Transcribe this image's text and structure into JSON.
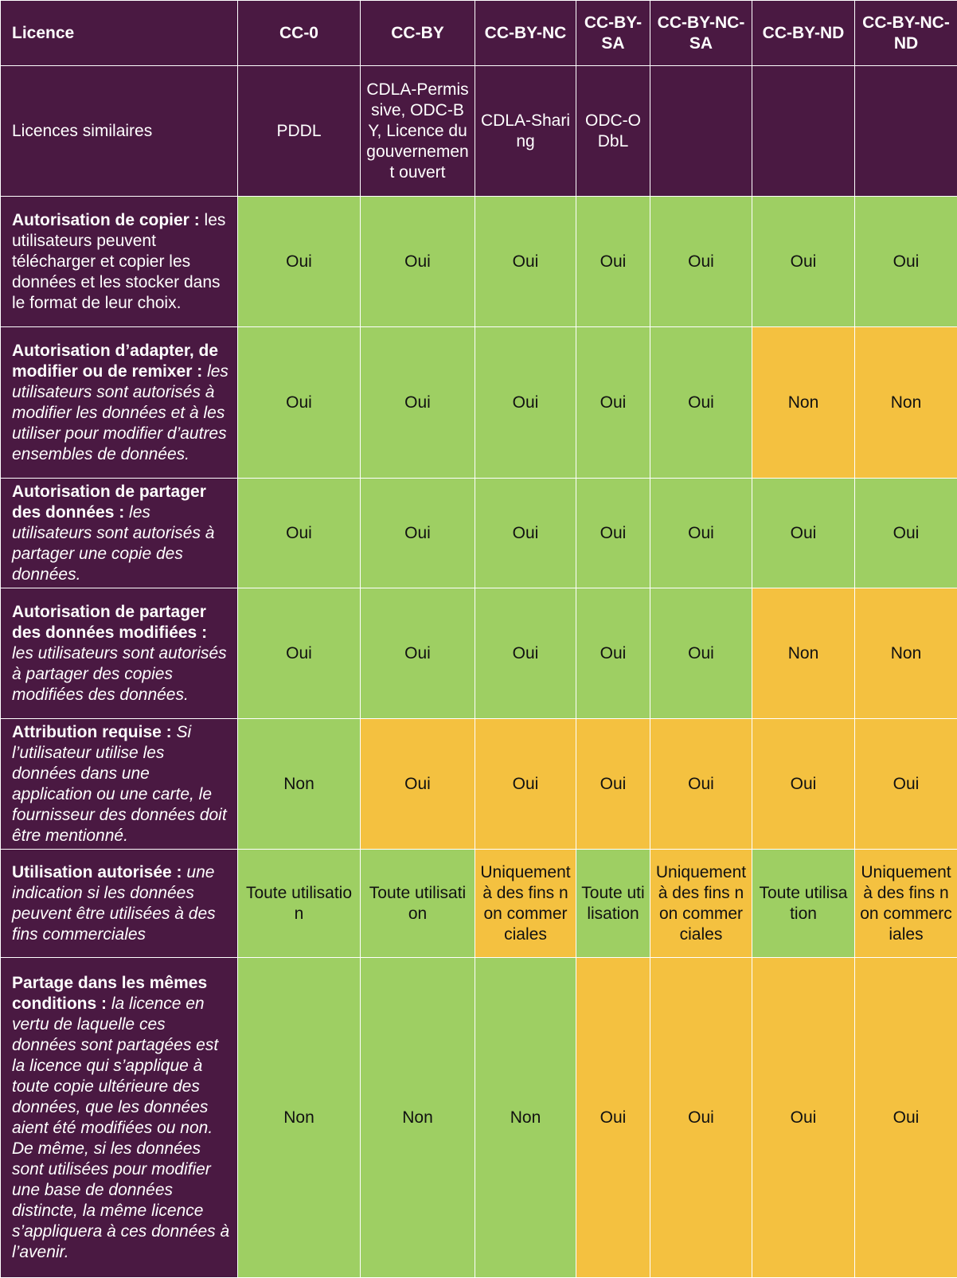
{
  "colors": {
    "header_bg": "#4a1942",
    "yes_bg": "#9ecf63",
    "restricted_bg": "#f4c140",
    "header_text": "#ffffff"
  },
  "header": {
    "label": "Licence",
    "columns": [
      "CC-0",
      "CC-BY",
      "CC-BY-NC",
      "CC-BY-SA",
      "CC-BY-NC-SA",
      "CC-BY-ND",
      "CC-BY-NC-ND"
    ]
  },
  "similar": {
    "label": "Licences similaires",
    "values": [
      "PDDL",
      "CDLA-Permissive, ODC-BY, Licence du gouvernement ouvert",
      "CDLA-Sharing",
      "ODC-ODbL",
      "",
      "",
      ""
    ]
  },
  "rows": [
    {
      "bold": "Autorisation de copier :",
      "desc": "les utilisateurs peuvent télécharger et copier les données et les stocker dans le format de leur choix.",
      "desc_italic": false,
      "values": [
        "Oui",
        "Oui",
        "Oui",
        "Oui",
        "Oui",
        "Oui",
        "Oui"
      ],
      "colors": [
        "green",
        "green",
        "green",
        "green",
        "green",
        "green",
        "green"
      ]
    },
    {
      "bold": "Autorisation d’adapter, de modifier ou de remixer :",
      "desc": "les utilisateurs sont autorisés à modifier les données et à les utiliser pour modifier d’autres ensembles de données.",
      "desc_italic": true,
      "values": [
        "Oui",
        "Oui",
        "Oui",
        "Oui",
        "Oui",
        "Non",
        "Non"
      ],
      "colors": [
        "green",
        "green",
        "green",
        "green",
        "green",
        "yellow",
        "yellow"
      ]
    },
    {
      "bold": "Autorisation de partager des données :",
      "desc": "les utilisateurs sont autorisés à partager une copie des données.",
      "desc_italic": true,
      "values": [
        "Oui",
        "Oui",
        "Oui",
        "Oui",
        "Oui",
        "Oui",
        "Oui"
      ],
      "colors": [
        "green",
        "green",
        "green",
        "green",
        "green",
        "green",
        "green"
      ]
    },
    {
      "bold": "Autorisation de partager des données modifiées :",
      "desc": "les utilisateurs sont autorisés à partager des copies modifiées des données.",
      "desc_italic": true,
      "values": [
        "Oui",
        "Oui",
        "Oui",
        "Oui",
        "Oui",
        "Non",
        "Non"
      ],
      "colors": [
        "green",
        "green",
        "green",
        "green",
        "green",
        "yellow",
        "yellow"
      ]
    },
    {
      "bold": "Attribution requise :",
      "desc": "Si l’utilisateur utilise les données dans une application ou une carte, le fournisseur des données doit être mentionné.",
      "desc_italic": true,
      "values": [
        "Non",
        "Oui",
        "Oui",
        "Oui",
        "Oui",
        "Oui",
        "Oui"
      ],
      "colors": [
        "green",
        "yellow",
        "yellow",
        "yellow",
        "yellow",
        "yellow",
        "yellow"
      ]
    },
    {
      "bold": "Utilisation autorisée :",
      "desc": "une indication si les données peuvent être utilisées à des fins commerciales",
      "desc_italic": true,
      "values": [
        "Toute utilisation",
        "Toute utilisation",
        "Uniquement à des fins non commerciales",
        "Toute utilisation",
        "Uniquement à des fins non commerciales",
        "Toute utilisation",
        "Uniquement à des fins non commerciales"
      ],
      "colors": [
        "green",
        "green",
        "yellow",
        "green",
        "yellow",
        "green",
        "yellow"
      ]
    },
    {
      "bold": "Partage dans les mêmes conditions :",
      "desc": "la licence en vertu de laquelle ces données sont partagées est la licence qui s’applique à toute copie ultérieure des données, que les données aient été modifiées ou non. De même, si les données sont utilisées pour modifier une base de données distincte, la même licence s’appliquera à ces données à l’avenir.",
      "desc_italic": true,
      "values": [
        "Non",
        "Non",
        "Non",
        "Oui",
        "Oui",
        "Oui",
        "Oui"
      ],
      "colors": [
        "green",
        "green",
        "green",
        "yellow",
        "yellow",
        "yellow",
        "yellow"
      ]
    }
  ]
}
